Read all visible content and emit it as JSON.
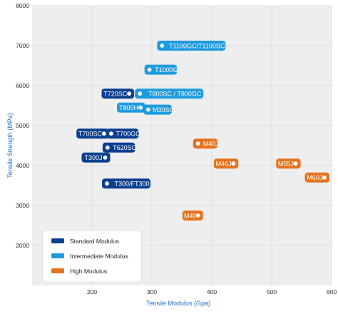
{
  "chart_data": {
    "type": "scatter",
    "xlabel": "Tensile Modulus (Gpa)",
    "ylabel": "Tensile Strength (MPa)",
    "xlim": [
      100,
      600
    ],
    "ylim": [
      1000,
      8000
    ],
    "xticks": [
      200,
      300,
      400,
      500,
      600
    ],
    "yticks": [
      2000,
      3000,
      4000,
      5000,
      6000,
      7000,
      8000
    ],
    "grid": true,
    "legend_position": "bottom-left",
    "series": [
      {
        "name": "Standard Modulus",
        "color": "#0b3f8f",
        "points": [
          {
            "label": "T720SC",
            "x": 262,
            "y": 5800,
            "label_side": "left"
          },
          {
            "label": "T700SC",
            "x": 220,
            "y": 4800,
            "label_side": "left"
          },
          {
            "label": "T700GC",
            "x": 232,
            "y": 4800,
            "label_side": "right"
          },
          {
            "label": "T620SC",
            "x": 226,
            "y": 4450,
            "label_side": "right"
          },
          {
            "label": "T300J",
            "x": 222,
            "y": 4200,
            "label_side": "left"
          },
          {
            "label": "T300/FT300",
            "x": 225,
            "y": 3550,
            "label_side": "right"
          }
        ]
      },
      {
        "name": "Intermediate Modulus",
        "color": "#1e9be0",
        "points": [
          {
            "label": "T1100GC/T1100SC",
            "x": 317,
            "y": 7000,
            "label_side": "right"
          },
          {
            "label": "T1000G",
            "x": 296,
            "y": 6400,
            "label_side": "right"
          },
          {
            "label": "T800SC / T800GC",
            "x": 280,
            "y": 5800,
            "label_side": "right"
          },
          {
            "label": "T800H",
            "x": 281,
            "y": 5450,
            "label_side": "left"
          },
          {
            "label": "M30SC",
            "x": 294,
            "y": 5400,
            "label_side": "right"
          }
        ]
      },
      {
        "name": "High Modulus",
        "color": "#e5731d",
        "points": [
          {
            "label": "M40J",
            "x": 377,
            "y": 4550,
            "label_side": "right"
          },
          {
            "label": "M46J",
            "x": 436,
            "y": 4050,
            "label_side": "left"
          },
          {
            "label": "M55J",
            "x": 540,
            "y": 4050,
            "label_side": "left"
          },
          {
            "label": "M60J",
            "x": 588,
            "y": 3700,
            "label_side": "left"
          },
          {
            "label": "M40",
            "x": 377,
            "y": 2750,
            "label_side": "left"
          }
        ]
      }
    ]
  }
}
